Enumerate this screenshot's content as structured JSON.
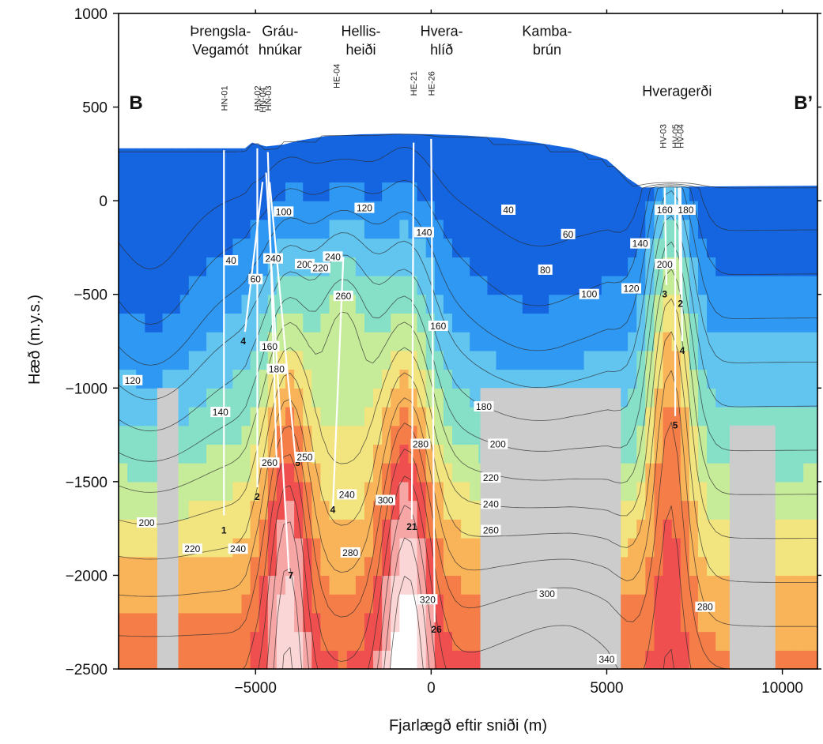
{
  "chart_data": {
    "type": "heatmap",
    "title": "",
    "xlabel": "Fjarlægð eftir sniði (m)",
    "ylabel": "Hæð (m.y.s.)",
    "xlim": [
      -8900,
      11000
    ],
    "ylim": [
      -2500,
      1000
    ],
    "x_ticks": [
      -5000,
      0,
      5000,
      10000
    ],
    "y_ticks": [
      1000,
      500,
      0,
      -500,
      -1000,
      -1500,
      -2000,
      -2500
    ],
    "section_ends": [
      "B",
      "B’"
    ],
    "color_scale": [
      {
        "t": 20,
        "color": "#1565e0"
      },
      {
        "t": 60,
        "color": "#2f98f2"
      },
      {
        "t": 90,
        "color": "#62c5ef"
      },
      {
        "t": 120,
        "color": "#86e0c8"
      },
      {
        "t": 150,
        "color": "#c6ec9a"
      },
      {
        "t": 175,
        "color": "#f2e47e"
      },
      {
        "t": 200,
        "color": "#f9b45a"
      },
      {
        "t": 230,
        "color": "#f57e48"
      },
      {
        "t": 260,
        "color": "#f04f4f"
      },
      {
        "t": 290,
        "color": "#f7a6a6"
      },
      {
        "t": 320,
        "color": "#fbd6d6"
      },
      {
        "t": 345,
        "color": "#ffffff"
      }
    ],
    "no_data_color": "#cccccc",
    "no_data_zones": [
      {
        "x0": -7800,
        "x1": -7200,
        "y0": -2500,
        "y1": -1000
      },
      {
        "x0": 1400,
        "x1": 5400,
        "y0": -2500,
        "y1": -1000
      },
      {
        "x0": 8500,
        "x1": 9800,
        "y0": -2500,
        "y1": -1200
      }
    ],
    "topography": [
      [
        -8900,
        280
      ],
      [
        -5300,
        280
      ],
      [
        -5100,
        310
      ],
      [
        -4900,
        300
      ],
      [
        -4700,
        290
      ],
      [
        -4200,
        300
      ],
      [
        -3800,
        320
      ],
      [
        -3000,
        345
      ],
      [
        -2000,
        355
      ],
      [
        -1000,
        358
      ],
      [
        0,
        355
      ],
      [
        1000,
        348
      ],
      [
        2000,
        335
      ],
      [
        3000,
        310
      ],
      [
        4000,
        280
      ],
      [
        5000,
        220
      ],
      [
        5600,
        120
      ],
      [
        6000,
        70
      ],
      [
        7000,
        75
      ],
      [
        11000,
        80
      ]
    ],
    "locations": [
      {
        "x": -6000,
        "lines": [
          "Þrengsla-",
          "Vegamót"
        ]
      },
      {
        "x": -4300,
        "lines": [
          "Gráu-",
          "hnúkar"
        ]
      },
      {
        "x": -2000,
        "lines": [
          "Hellis-",
          "heiði"
        ]
      },
      {
        "x": 300,
        "lines": [
          "Hvera-",
          "hlíð"
        ]
      },
      {
        "x": 3300,
        "lines": [
          "Kamba-",
          "brún"
        ]
      },
      {
        "x": 7000,
        "lines": [
          "Hveragerði"
        ]
      }
    ],
    "wells": [
      {
        "name": "HN-01",
        "x": -5900,
        "label_y": 480,
        "path": [
          [
            -5900,
            270
          ],
          [
            -5900,
            -1680
          ]
        ],
        "number": "1",
        "number_at": [
          -5900,
          -1760
        ]
      },
      {
        "name": "HN-02",
        "x": -4950,
        "label_y": 480,
        "path": [
          [
            -4950,
            280
          ],
          [
            -4950,
            -1530
          ]
        ],
        "number": "2",
        "number_at": [
          -4950,
          -1580
        ]
      },
      {
        "name": "HN-04",
        "x": -4800,
        "label_y": 470,
        "path": [
          [
            -4800,
            100
          ],
          [
            -5300,
            -700
          ]
        ],
        "number": "4",
        "number_at": [
          -5350,
          -750
        ]
      },
      {
        "name": "HN-03",
        "x": -4650,
        "label_y": 480,
        "path": [
          [
            -4650,
            260
          ],
          [
            -4400,
            -1400
          ]
        ],
        "number": "3",
        "number_at": [
          -4400,
          -1400
        ]
      },
      {
        "name": "",
        "x": -4700,
        "label_y": 0,
        "path": [
          [
            -4700,
            150
          ],
          [
            -4050,
            -1980
          ]
        ],
        "number": "7",
        "number_at": [
          -4000,
          -2000
        ]
      },
      {
        "name": "",
        "x": -4600,
        "label_y": 0,
        "path": [
          [
            -4600,
            100
          ],
          [
            -3850,
            -1400
          ]
        ],
        "number": "5",
        "number_at": [
          -3800,
          -1400
        ]
      },
      {
        "name": "HE-04",
        "x": -2700,
        "label_y": 600,
        "path": [
          [
            -2500,
            -300
          ],
          [
            -2800,
            -1650
          ]
        ],
        "number": "4",
        "number_at": [
          -2800,
          -1650
        ]
      },
      {
        "name": "HE-21",
        "x": -500,
        "label_y": 560,
        "path": [
          [
            -500,
            310
          ],
          [
            -550,
            -1700
          ]
        ],
        "number": "21",
        "number_at": [
          -550,
          -1740
        ]
      },
      {
        "name": "HE-26",
        "x": 0,
        "label_y": 560,
        "path": [
          [
            0,
            330
          ],
          [
            100,
            -2250
          ]
        ],
        "number": "26",
        "number_at": [
          150,
          -2290
        ]
      },
      {
        "name": "HV-03",
        "x": 6600,
        "label_y": 280,
        "path": [
          [
            6650,
            70
          ],
          [
            6700,
            -450
          ]
        ],
        "number": "3",
        "number_at": [
          6650,
          -500
        ]
      },
      {
        "name": "HV-05",
        "x": 6950,
        "label_y": 280,
        "path": [
          [
            6950,
            70
          ],
          [
            6950,
            -1150
          ]
        ],
        "number": "5",
        "number_at": [
          6950,
          -1200
        ]
      },
      {
        "name": "HV-04",
        "x": 7100,
        "label_y": 280,
        "path": [
          [
            7100,
            70
          ],
          [
            7150,
            -750
          ]
        ],
        "number": "4",
        "number_at": [
          7150,
          -800
        ]
      },
      {
        "name": "",
        "x": 7050,
        "label_y": 0,
        "path": [
          [
            7050,
            70
          ],
          [
            7100,
            -500
          ]
        ],
        "number": "2",
        "number_at": [
          7100,
          -550
        ]
      }
    ],
    "isotherm_labels": [
      {
        "t": "120",
        "x": -1900,
        "y": -40
      },
      {
        "t": "100",
        "x": -4200,
        "y": -60
      },
      {
        "t": "40",
        "x": 2200,
        "y": -50
      },
      {
        "t": "60",
        "x": 3900,
        "y": -180
      },
      {
        "t": "80",
        "x": 3250,
        "y": -370
      },
      {
        "t": "100",
        "x": 4500,
        "y": -500
      },
      {
        "t": "120",
        "x": 5700,
        "y": -470
      },
      {
        "t": "140",
        "x": 5950,
        "y": -230
      },
      {
        "t": "160",
        "x": 6650,
        "y": -50
      },
      {
        "t": "180",
        "x": 7250,
        "y": -50
      },
      {
        "t": "200",
        "x": 6650,
        "y": -340
      },
      {
        "t": "140",
        "x": -200,
        "y": -170
      },
      {
        "t": "160",
        "x": 200,
        "y": -670
      },
      {
        "t": "40",
        "x": -5700,
        "y": -320
      },
      {
        "t": "60",
        "x": -5000,
        "y": -420
      },
      {
        "t": "200",
        "x": -3600,
        "y": -340
      },
      {
        "t": "220",
        "x": -3150,
        "y": -360
      },
      {
        "t": "240",
        "x": -2800,
        "y": -300
      },
      {
        "t": "260",
        "x": -2500,
        "y": -510
      },
      {
        "t": "240",
        "x": -4500,
        "y": -310
      },
      {
        "t": "160",
        "x": -4600,
        "y": -780
      },
      {
        "t": "180",
        "x": -4400,
        "y": -900
      },
      {
        "t": "140",
        "x": -6000,
        "y": -1130
      },
      {
        "t": "120",
        "x": -8500,
        "y": -960
      },
      {
        "t": "260",
        "x": -4600,
        "y": -1400
      },
      {
        "t": "250",
        "x": -3600,
        "y": -1370
      },
      {
        "t": "240",
        "x": -2400,
        "y": -1570
      },
      {
        "t": "300",
        "x": -1300,
        "y": -1600
      },
      {
        "t": "280",
        "x": -2300,
        "y": -1880
      },
      {
        "t": "280",
        "x": -300,
        "y": -1300
      },
      {
        "t": "200",
        "x": -8100,
        "y": -1720
      },
      {
        "t": "220",
        "x": -6800,
        "y": -1860
      },
      {
        "t": "240",
        "x": -5500,
        "y": -1860
      },
      {
        "t": "180",
        "x": 1500,
        "y": -1100
      },
      {
        "t": "200",
        "x": 1900,
        "y": -1300
      },
      {
        "t": "220",
        "x": 1700,
        "y": -1480
      },
      {
        "t": "240",
        "x": 1700,
        "y": -1620
      },
      {
        "t": "260",
        "x": 1700,
        "y": -1760
      },
      {
        "t": "300",
        "x": 3300,
        "y": -2100
      },
      {
        "t": "320",
        "x": -100,
        "y": -2130
      },
      {
        "t": "280",
        "x": 7800,
        "y": -2170
      },
      {
        "t": "340",
        "x": 5000,
        "y": -2450
      }
    ]
  }
}
